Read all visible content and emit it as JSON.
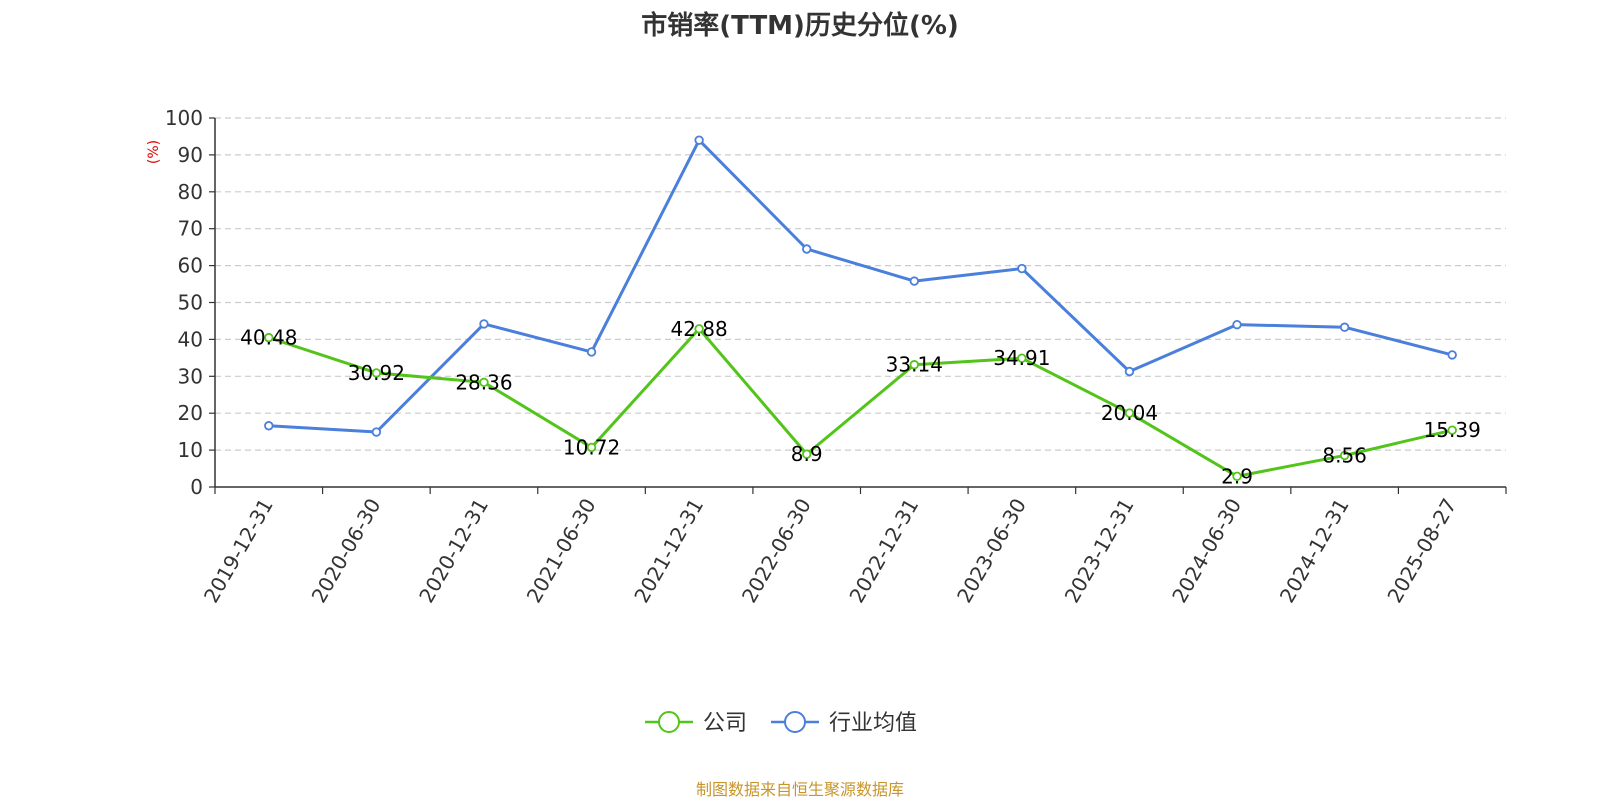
{
  "chart_data": {
    "type": "line",
    "title": "市销率(TTM)历史分位(%)",
    "ylabel": "(%)",
    "ylim": [
      0,
      100
    ],
    "yticks": [
      0,
      10,
      20,
      30,
      40,
      50,
      60,
      70,
      80,
      90,
      100
    ],
    "grid": true,
    "legend_position": "bottom",
    "categories": [
      "2019-12-31",
      "2020-06-30",
      "2020-12-31",
      "2021-06-30",
      "2021-12-31",
      "2022-06-30",
      "2022-12-31",
      "2023-06-30",
      "2023-12-31",
      "2024-06-30",
      "2024-12-31",
      "2025-08-27"
    ],
    "series": [
      {
        "name": "公司",
        "color": "#52c41a",
        "values": [
          40.48,
          30.92,
          28.36,
          10.72,
          42.88,
          8.9,
          33.14,
          34.91,
          20.04,
          2.9,
          8.56,
          15.39
        ],
        "labels": [
          "40.48",
          "30.92",
          "28.36",
          "10.72",
          "42.88",
          "8.9",
          "33.14",
          "34.91",
          "20.04",
          "2.9",
          "8.56",
          "15.39"
        ]
      },
      {
        "name": "行业均值",
        "color": "#4a7fdc",
        "values": [
          16.6,
          14.9,
          44.2,
          36.6,
          94.0,
          64.5,
          55.8,
          59.2,
          31.3,
          44.0,
          43.3,
          35.8
        ]
      }
    ]
  },
  "source": {
    "text": "制图数据来自恒生聚源数据库",
    "color": "#c8952b"
  },
  "unit_color": "#e00000"
}
